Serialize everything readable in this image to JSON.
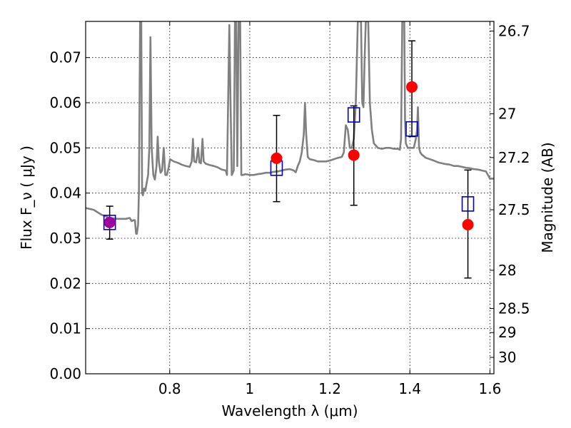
{
  "chart_data": {
    "type": "scatter",
    "xlabel": "Wavelength  λ (μm)",
    "ylabel": "Flux  F_ν  ( μJy )",
    "ylabel_right": "Magnitude (AB)",
    "xlim": [
      0.59,
      1.61
    ],
    "ylim": [
      0.0,
      0.078
    ],
    "grid": true,
    "x_ticks": [
      {
        "value": 0.8,
        "label": "0.8"
      },
      {
        "value": 1.0,
        "label": "1"
      },
      {
        "value": 1.2,
        "label": "1.2"
      },
      {
        "value": 1.4,
        "label": "1.4"
      },
      {
        "value": 1.6,
        "label": "1.6"
      }
    ],
    "y_ticks": [
      {
        "value": 0.0,
        "label": "0.00"
      },
      {
        "value": 0.01,
        "label": "0.01"
      },
      {
        "value": 0.02,
        "label": "0.02"
      },
      {
        "value": 0.03,
        "label": "0.03"
      },
      {
        "value": 0.04,
        "label": "0.04"
      },
      {
        "value": 0.05,
        "label": "0.05"
      },
      {
        "value": 0.06,
        "label": "0.06"
      },
      {
        "value": 0.07,
        "label": "0.07"
      }
    ],
    "right_ticks": [
      {
        "value": 26.7,
        "label": "26.7"
      },
      {
        "value": 27.0,
        "label": "27"
      },
      {
        "value": 27.2,
        "label": "27.2"
      },
      {
        "value": 27.5,
        "label": "27.5"
      },
      {
        "value": 28.0,
        "label": "28"
      },
      {
        "value": 28.5,
        "label": "28.5"
      },
      {
        "value": 29.0,
        "label": "29"
      },
      {
        "value": 30.0,
        "label": "30"
      }
    ],
    "series": [
      {
        "kind": "line",
        "color": "#808080",
        "points": [
          [
            0.59,
            0.0367
          ],
          [
            0.61,
            0.0363
          ],
          [
            0.63,
            0.0352
          ],
          [
            0.65,
            0.0345
          ],
          [
            0.67,
            0.0343
          ],
          [
            0.69,
            0.0343
          ],
          [
            0.7,
            0.0345
          ],
          [
            0.705,
            0.0338
          ],
          [
            0.71,
            0.034
          ],
          [
            0.713,
            0.034
          ],
          [
            0.716,
            0.031
          ],
          [
            0.718,
            0.031
          ],
          [
            0.721,
            0.033
          ],
          [
            0.723,
            0.04
          ],
          [
            0.726,
            0.078
          ],
          [
            0.729,
            0.078
          ],
          [
            0.731,
            0.04
          ],
          [
            0.733,
            0.0395
          ],
          [
            0.736,
            0.041
          ],
          [
            0.739,
            0.0405
          ],
          [
            0.742,
            0.042
          ],
          [
            0.746,
            0.044
          ],
          [
            0.749,
            0.05
          ],
          [
            0.752,
            0.0745
          ],
          [
            0.755,
            0.05
          ],
          [
            0.759,
            0.044
          ],
          [
            0.763,
            0.043
          ],
          [
            0.767,
            0.046
          ],
          [
            0.77,
            0.0525
          ],
          [
            0.773,
            0.047
          ],
          [
            0.777,
            0.0445
          ],
          [
            0.781,
            0.045
          ],
          [
            0.785,
            0.05
          ],
          [
            0.789,
            0.044
          ],
          [
            0.793,
            0.044
          ],
          [
            0.797,
            0.0455
          ],
          [
            0.801,
            0.0475
          ],
          [
            0.81,
            0.047
          ],
          [
            0.82,
            0.0467
          ],
          [
            0.83,
            0.0463
          ],
          [
            0.84,
            0.046
          ],
          [
            0.85,
            0.0458
          ],
          [
            0.855,
            0.047
          ],
          [
            0.858,
            0.052
          ],
          [
            0.861,
            0.047
          ],
          [
            0.866,
            0.0468
          ],
          [
            0.871,
            0.05
          ],
          [
            0.874,
            0.0468
          ],
          [
            0.878,
            0.0466
          ],
          [
            0.882,
            0.052
          ],
          [
            0.885,
            0.047
          ],
          [
            0.89,
            0.0465
          ],
          [
            0.9,
            0.0462
          ],
          [
            0.91,
            0.046
          ],
          [
            0.92,
            0.0457
          ],
          [
            0.93,
            0.0452
          ],
          [
            0.94,
            0.045
          ],
          [
            0.943,
            0.044
          ],
          [
            0.946,
            0.06
          ],
          [
            0.949,
            0.0772
          ],
          [
            0.952,
            0.06
          ],
          [
            0.955,
            0.044
          ],
          [
            0.96,
            0.045
          ],
          [
            0.963,
            0.078
          ],
          [
            0.966,
            0.078
          ],
          [
            0.969,
            0.046
          ],
          [
            0.972,
            0.078
          ],
          [
            0.976,
            0.078
          ],
          [
            0.979,
            0.044
          ],
          [
            0.983,
            0.044
          ],
          [
            0.99,
            0.0442
          ],
          [
            1.0,
            0.044
          ],
          [
            1.01,
            0.044
          ],
          [
            1.02,
            0.0442
          ],
          [
            1.03,
            0.0443
          ],
          [
            1.04,
            0.0445
          ],
          [
            1.05,
            0.0445
          ],
          [
            1.06,
            0.0447
          ],
          [
            1.07,
            0.0448
          ],
          [
            1.08,
            0.045
          ],
          [
            1.09,
            0.0452
          ],
          [
            1.1,
            0.0453
          ],
          [
            1.11,
            0.045
          ],
          [
            1.115,
            0.0446
          ],
          [
            1.12,
            0.046
          ],
          [
            1.125,
            0.047
          ],
          [
            1.13,
            0.049
          ],
          [
            1.135,
            0.053
          ],
          [
            1.138,
            0.06
          ],
          [
            1.141,
            0.053
          ],
          [
            1.145,
            0.048
          ],
          [
            1.15,
            0.0475
          ],
          [
            1.16,
            0.0473
          ],
          [
            1.17,
            0.047
          ],
          [
            1.18,
            0.047
          ],
          [
            1.19,
            0.047
          ],
          [
            1.2,
            0.0472
          ],
          [
            1.21,
            0.0475
          ],
          [
            1.22,
            0.0478
          ],
          [
            1.23,
            0.048
          ],
          [
            1.235,
            0.049
          ],
          [
            1.24,
            0.055
          ],
          [
            1.245,
            0.054
          ],
          [
            1.25,
            0.05
          ],
          [
            1.255,
            0.05
          ],
          [
            1.26,
            0.052
          ],
          [
            1.265,
            0.06
          ],
          [
            1.27,
            0.078
          ],
          [
            1.278,
            0.078
          ],
          [
            1.281,
            0.06
          ],
          [
            1.284,
            0.059
          ],
          [
            1.287,
            0.07
          ],
          [
            1.29,
            0.078
          ],
          [
            1.296,
            0.078
          ],
          [
            1.3,
            0.06
          ],
          [
            1.305,
            0.054
          ],
          [
            1.31,
            0.051
          ],
          [
            1.32,
            0.05
          ],
          [
            1.33,
            0.0498
          ],
          [
            1.34,
            0.05
          ],
          [
            1.35,
            0.05
          ],
          [
            1.36,
            0.0498
          ],
          [
            1.37,
            0.0498
          ],
          [
            1.375,
            0.0496
          ],
          [
            1.378,
            0.052
          ],
          [
            1.381,
            0.078
          ],
          [
            1.386,
            0.078
          ],
          [
            1.388,
            0.056
          ],
          [
            1.39,
            0.051
          ],
          [
            1.395,
            0.05
          ],
          [
            1.4,
            0.05
          ],
          [
            1.405,
            0.05
          ],
          [
            1.41,
            0.05
          ],
          [
            1.415,
            0.052
          ],
          [
            1.418,
            0.054
          ],
          [
            1.42,
            0.059
          ],
          [
            1.423,
            0.05
          ],
          [
            1.426,
            0.049
          ],
          [
            1.43,
            0.0485
          ],
          [
            1.44,
            0.0478
          ],
          [
            1.45,
            0.0475
          ],
          [
            1.46,
            0.0472
          ],
          [
            1.47,
            0.0468
          ],
          [
            1.48,
            0.0466
          ],
          [
            1.49,
            0.0464
          ],
          [
            1.5,
            0.0463
          ],
          [
            1.51,
            0.046
          ],
          [
            1.52,
            0.046
          ],
          [
            1.53,
            0.0458
          ],
          [
            1.54,
            0.0456
          ],
          [
            1.55,
            0.0455
          ],
          [
            1.56,
            0.0453
          ],
          [
            1.57,
            0.0452
          ],
          [
            1.58,
            0.045
          ],
          [
            1.59,
            0.0448
          ],
          [
            1.595,
            0.044
          ],
          [
            1.6,
            0.0432
          ],
          [
            1.61,
            0.0432
          ]
        ]
      },
      {
        "kind": "errorbar",
        "color": "#ff0000",
        "marker": "circle",
        "points": [
          {
            "x": 0.65,
            "y": 0.0335,
            "yerr_low": 0.0298,
            "yerr_high": 0.0371
          },
          {
            "x": 1.067,
            "y": 0.0477,
            "yerr_low": 0.0381,
            "yerr_high": 0.0572
          },
          {
            "x": 1.26,
            "y": 0.0484,
            "yerr_low": 0.0373,
            "yerr_high": 0.0593
          },
          {
            "x": 1.405,
            "y": 0.0635,
            "yerr_low": 0.0525,
            "yerr_high": 0.0737
          },
          {
            "x": 1.545,
            "y": 0.033,
            "yerr_low": 0.0212,
            "yerr_high": 0.0451
          }
        ]
      },
      {
        "kind": "scatter",
        "color": "#0000cc",
        "marker": "square-open",
        "points": [
          {
            "x": 0.65,
            "y": 0.0335
          },
          {
            "x": 1.067,
            "y": 0.0455
          },
          {
            "x": 1.26,
            "y": 0.0573
          },
          {
            "x": 1.405,
            "y": 0.0542
          },
          {
            "x": 1.545,
            "y": 0.0376
          }
        ]
      }
    ]
  }
}
